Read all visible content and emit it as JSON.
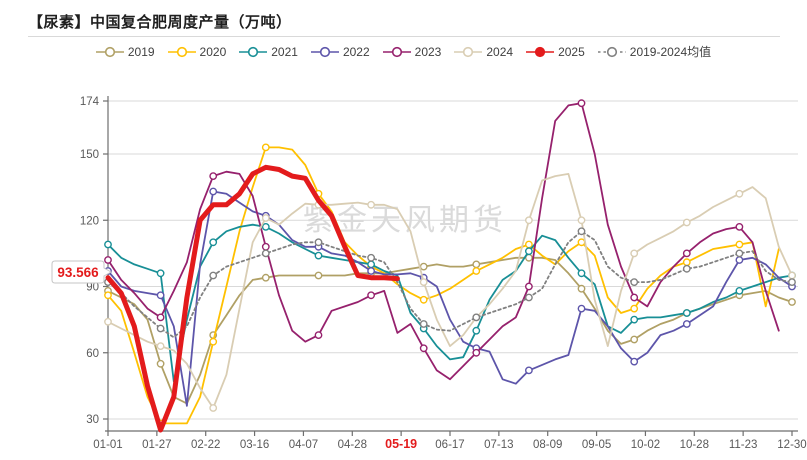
{
  "chart_data": {
    "type": "line",
    "title": "【尿素】中国复合肥周度产量（万吨）",
    "watermark": "紫金天风期货",
    "xlabel": "",
    "ylabel": "",
    "ylim": [
      30,
      174
    ],
    "y_ticks": [
      30,
      60,
      90,
      120,
      150,
      174
    ],
    "grid": "horizontal",
    "legend_position": "top",
    "n_points": 53,
    "x_ticks": [
      {
        "label": "01-01",
        "highlight": false
      },
      {
        "label": "01-27",
        "highlight": false
      },
      {
        "label": "02-22",
        "highlight": false
      },
      {
        "label": "03-16",
        "highlight": false
      },
      {
        "label": "04-07",
        "highlight": false
      },
      {
        "label": "04-28",
        "highlight": false
      },
      {
        "label": "05-19",
        "highlight": true
      },
      {
        "label": "06-17",
        "highlight": false
      },
      {
        "label": "07-13",
        "highlight": false
      },
      {
        "label": "08-09",
        "highlight": false
      },
      {
        "label": "09-05",
        "highlight": false
      },
      {
        "label": "10-02",
        "highlight": false
      },
      {
        "label": "10-28",
        "highlight": false
      },
      {
        "label": "11-23",
        "highlight": false
      },
      {
        "label": "12-30",
        "highlight": false
      }
    ],
    "annotation": {
      "label": "93.566",
      "value": 93.566,
      "series": "2025",
      "color": "#e31b1c"
    },
    "series": [
      {
        "name": "2019",
        "color": "#b0a065",
        "width": 1.8,
        "dashed": false,
        "markers": true,
        "filled_marker": false,
        "values": [
          88,
          85,
          82,
          75,
          55,
          40,
          37,
          50,
          68,
          77,
          86,
          93,
          94,
          95,
          95,
          95,
          95,
          95,
          95,
          96,
          96,
          96,
          97,
          98,
          99,
          100,
          99,
          99,
          100,
          101,
          102,
          103,
          103,
          103,
          102,
          96,
          89,
          80,
          70,
          64,
          66,
          70,
          73,
          75,
          78,
          80,
          82,
          84,
          86,
          87,
          88,
          85,
          83
        ]
      },
      {
        "name": "2020",
        "color": "#ffc000",
        "width": 1.8,
        "dashed": false,
        "markers": true,
        "filled_marker": false,
        "values": [
          86,
          79,
          60,
          40,
          28,
          28,
          28,
          40,
          65,
          90,
          115,
          135,
          153,
          153,
          152,
          145,
          132,
          124,
          110,
          104,
          99,
          96,
          91,
          87,
          84,
          86,
          89,
          93,
          97,
          100,
          103,
          107,
          109,
          104,
          100,
          106,
          110,
          104,
          85,
          78,
          80,
          89,
          95,
          99,
          101,
          104,
          107,
          108,
          109,
          110,
          81,
          107,
          null
        ]
      },
      {
        "name": "2021",
        "color": "#188f96",
        "width": 1.8,
        "dashed": false,
        "markers": true,
        "filled_marker": false,
        "values": [
          109,
          103,
          100,
          98,
          96,
          47,
          75,
          99,
          110,
          115,
          117,
          118,
          117,
          114,
          110,
          107,
          104,
          103,
          102,
          101,
          100,
          97,
          95,
          78,
          71,
          63,
          57,
          58,
          70,
          84,
          93,
          97,
          106,
          113,
          111,
          103,
          96,
          91,
          72,
          69,
          75,
          76,
          76,
          77,
          78,
          80,
          83,
          85,
          88,
          90,
          92,
          94,
          95
        ]
      },
      {
        "name": "2022",
        "color": "#5d55aa",
        "width": 1.8,
        "dashed": false,
        "markers": true,
        "filled_marker": false,
        "values": [
          97,
          90,
          88,
          87,
          86,
          72,
          36,
          100,
          133,
          132,
          128,
          124,
          122,
          118,
          111,
          108,
          108,
          105,
          104,
          101,
          97,
          95.5,
          95.5,
          96,
          94,
          90,
          75,
          65,
          62,
          60.5,
          48,
          46,
          52,
          54.5,
          57,
          59,
          80,
          79,
          72,
          62,
          56,
          60,
          68,
          70,
          73,
          77,
          81,
          92,
          102,
          103,
          100,
          94,
          90
        ]
      },
      {
        "name": "2023",
        "color": "#96216d",
        "width": 1.8,
        "dashed": false,
        "markers": true,
        "filled_marker": false,
        "values": [
          102,
          93,
          87,
          80,
          76,
          88,
          101,
          125,
          140,
          142,
          141,
          131,
          108,
          86,
          70,
          65,
          68,
          79,
          81,
          83,
          86,
          88,
          69,
          73,
          62,
          52,
          48,
          54,
          60,
          66,
          72,
          76,
          90,
          130,
          165,
          172,
          173,
          150,
          118,
          99,
          85,
          81,
          92,
          99,
          105,
          110,
          114,
          116,
          117,
          110,
          88,
          70,
          null
        ]
      },
      {
        "name": "2024",
        "color": "#d9cdb3",
        "width": 1.8,
        "dashed": false,
        "markers": true,
        "filled_marker": false,
        "values": [
          74,
          71,
          68,
          65,
          63,
          61,
          55,
          44,
          35,
          50,
          80,
          110,
          121,
          118,
          123,
          127.5,
          127,
          127,
          127.5,
          128,
          127,
          127,
          125,
          115,
          92,
          75,
          63,
          68,
          76,
          82,
          89,
          97,
          120,
          138,
          140,
          141,
          120,
          84,
          63,
          88,
          105,
          109,
          112,
          115,
          119,
          122,
          126,
          129,
          132,
          135,
          130,
          108,
          95
        ]
      },
      {
        "name": "2025",
        "color": "#e31b1c",
        "width": 5,
        "dashed": false,
        "markers": false,
        "filled_marker": true,
        "values": [
          94,
          87,
          72,
          45,
          25,
          40,
          85,
          120,
          127,
          127,
          132,
          141,
          144,
          143,
          140,
          139,
          129,
          122,
          108,
          95,
          94,
          94,
          93.566
        ]
      },
      {
        "name": "2019-2024均值",
        "color": "#808080",
        "width": 1.8,
        "dashed": true,
        "markers": true,
        "filled_marker": false,
        "values": [
          92,
          87,
          81,
          76,
          71,
          67,
          72,
          85,
          95,
          99,
          101,
          103,
          105,
          107,
          109,
          110,
          110,
          108,
          106,
          104,
          103,
          101,
          92,
          80,
          73,
          70.5,
          70,
          73,
          76,
          78,
          80,
          82,
          85,
          89,
          100,
          110,
          115,
          111,
          99,
          94,
          92,
          92,
          93,
          95.5,
          98,
          99,
          101,
          103,
          105,
          106,
          97,
          93,
          92
        ]
      }
    ]
  }
}
